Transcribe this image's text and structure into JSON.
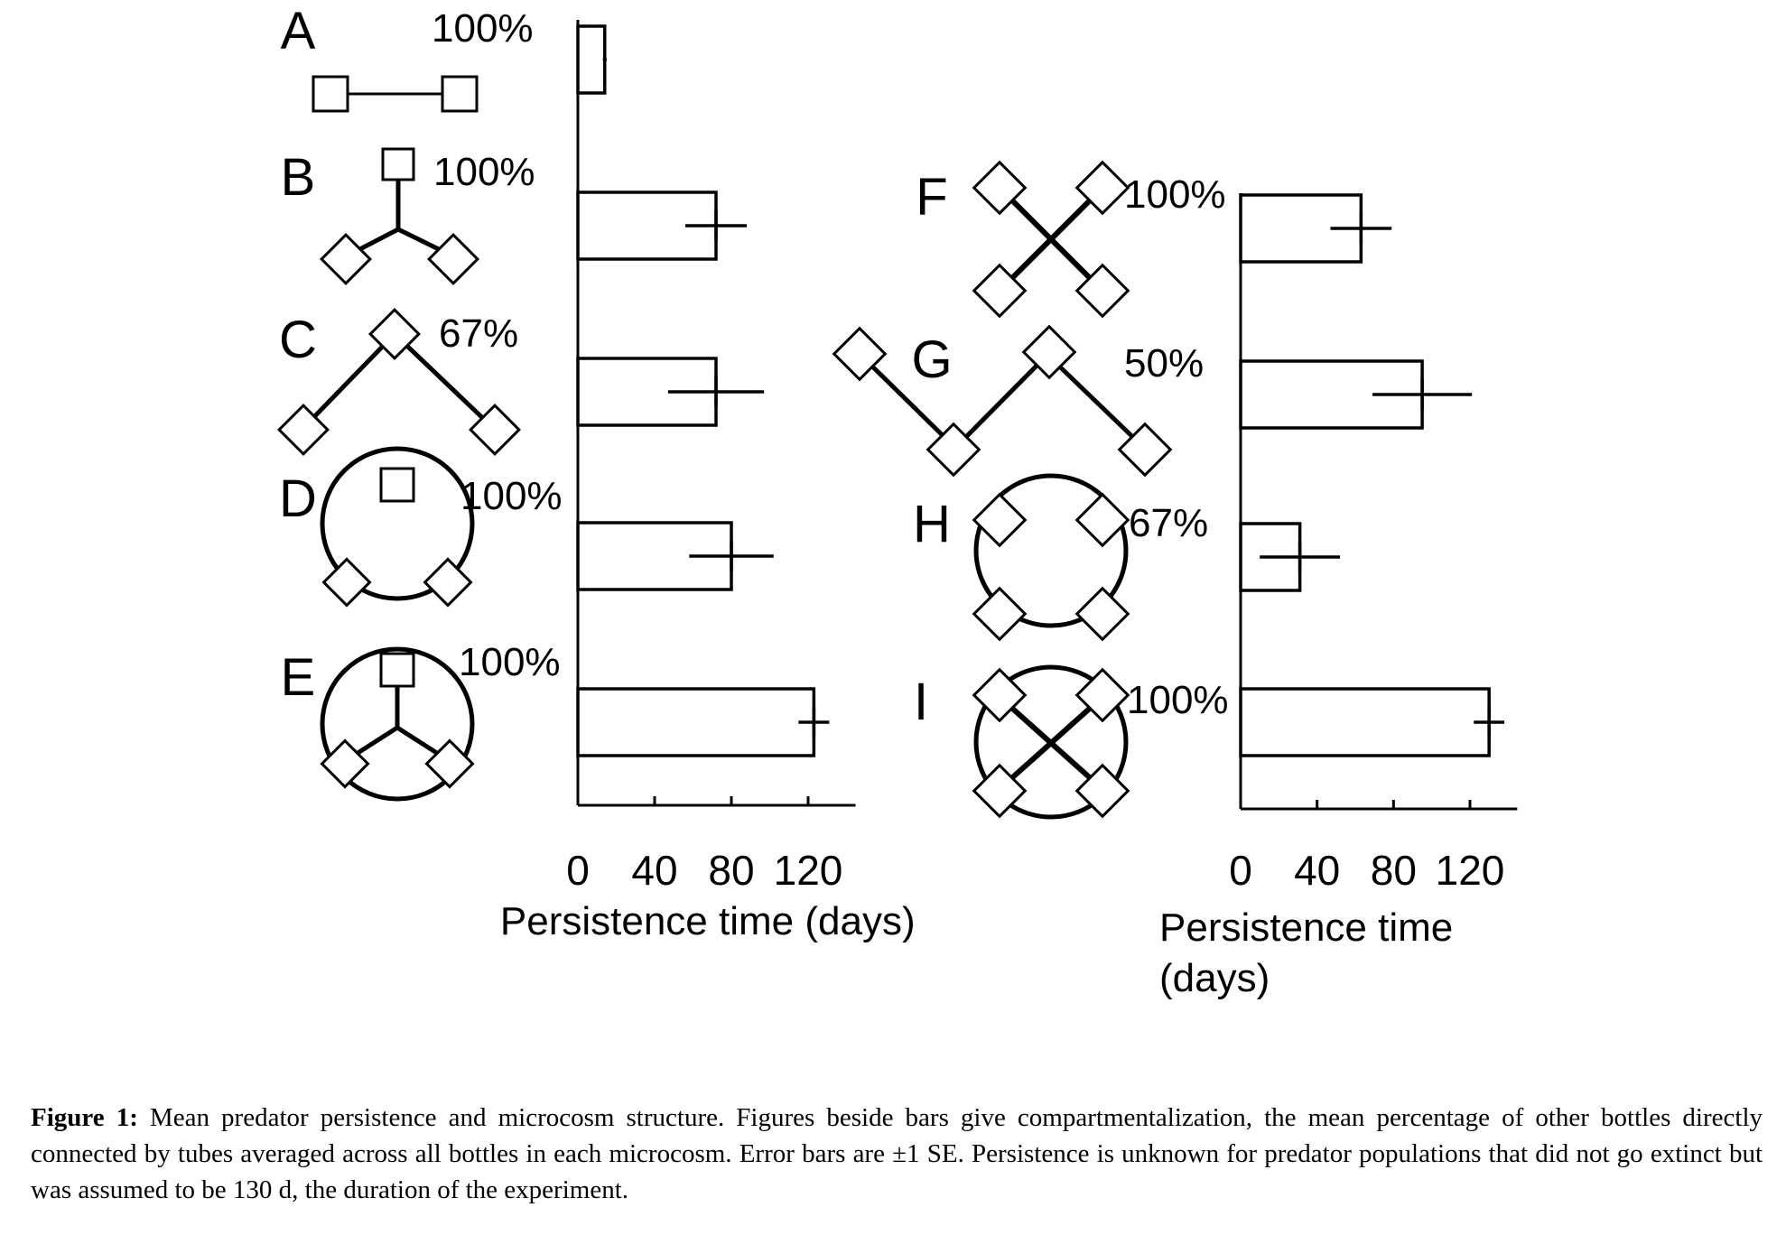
{
  "chart_data": [
    {
      "type": "bar",
      "orientation": "horizontal",
      "categories": [
        "A",
        "B",
        "C",
        "D",
        "E"
      ],
      "values": [
        14,
        72,
        72,
        80,
        123
      ],
      "error": [
        1,
        16,
        25,
        22,
        8
      ],
      "annotations": [
        "100%",
        "100%",
        "67%",
        "100%",
        "100%"
      ],
      "xlim": [
        0,
        140
      ],
      "xticks": [
        "0",
        "40",
        "80",
        "120"
      ],
      "xlabel": "Persistence time (days)"
    },
    {
      "type": "bar",
      "orientation": "horizontal",
      "categories": [
        "F",
        "G",
        "H",
        "I"
      ],
      "values": [
        63,
        95,
        31,
        130
      ],
      "error": [
        16,
        26,
        21,
        8
      ],
      "annotations": [
        "100%",
        "50%",
        "67%",
        "100%"
      ],
      "xlim": [
        0,
        140
      ],
      "xticks": [
        "0",
        "40",
        "80",
        "120"
      ],
      "xlabel_lines": [
        "Persistence time",
        "(days)"
      ]
    }
  ],
  "caption": {
    "label": "Figure 1:",
    "text": " Mean predator persistence and microcosm structure. Figures beside bars give compartmentalization, the mean percentage of other bottles directly connected by tubes averaged across all bottles in each microcosm. Error bars are ±1 SE. Persistence is unknown for predator populations that did not go extinct but was assumed to be 130 d, the duration of the experiment."
  },
  "colors": {
    "ink": "#000000",
    "background": "#ffffff"
  }
}
